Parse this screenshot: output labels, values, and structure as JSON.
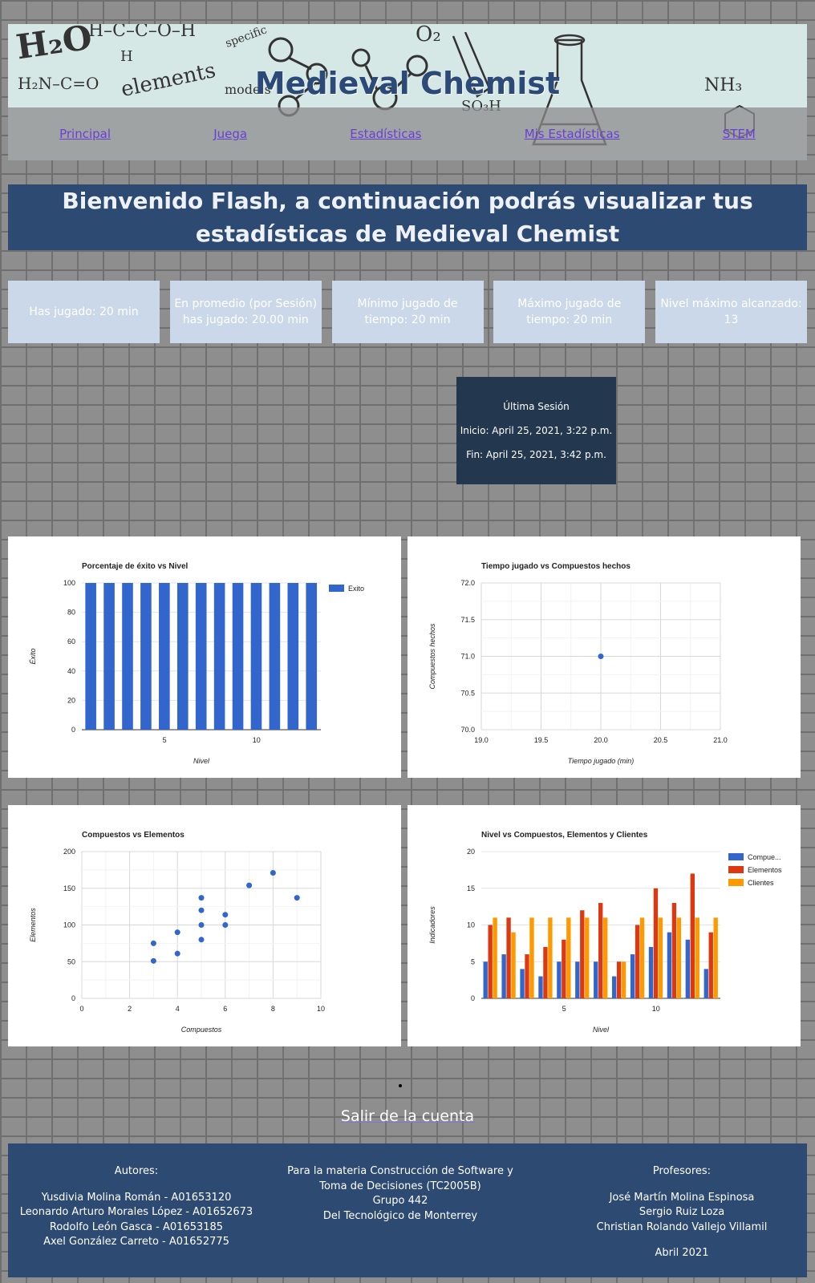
{
  "header": {
    "title": "Medieval Chemist",
    "nav": [
      "Principal",
      "Juega",
      "Estadísticas",
      "Mis Estadísticas",
      "STEM"
    ]
  },
  "welcome": "Bienvenido Flash, a continuación podrás visualizar tus estadísticas de Medieval Chemist",
  "stats": [
    {
      "text": "Has jugado: 20 min"
    },
    {
      "text": "En promedio (por Sesión) has jugado: 20.00 min"
    },
    {
      "text": "Mínimo jugado de tiempo: 20 min"
    },
    {
      "text": "Máximo jugado de tiempo: 20 min"
    },
    {
      "text": "Nivel máximo alcanzado: 13"
    }
  ],
  "session": {
    "title": "Última Sesión",
    "start": "Inicio: April 25, 2021, 3:22 p.m.",
    "end": "Fin: April 25, 2021, 3:42 p.m."
  },
  "chart_data": [
    {
      "type": "bar",
      "title": "Porcentaje de éxito vs Nivel",
      "xlabel": "Nivel",
      "ylabel": "Éxito",
      "x": [
        1,
        2,
        3,
        4,
        5,
        6,
        7,
        8,
        9,
        10,
        11,
        12,
        13
      ],
      "series": [
        {
          "name": "Exito",
          "values": [
            100,
            100,
            100,
            100,
            100,
            100,
            100,
            100,
            100,
            100,
            100,
            100,
            100
          ]
        }
      ],
      "ylim": [
        0,
        100
      ],
      "yticks": [
        0,
        20,
        40,
        60,
        80,
        100
      ],
      "xticks": [
        5,
        10
      ],
      "color": "#3366cc",
      "legend": "right"
    },
    {
      "type": "scatter",
      "title": "Tiempo jugado vs Compuestos hechos",
      "xlabel": "Tiempo jugado (min)",
      "ylabel": "Compuestos hechos",
      "points": [
        [
          20,
          71
        ]
      ],
      "xlim": [
        19,
        21
      ],
      "ylim": [
        70,
        72
      ],
      "xticks": [
        "19.0",
        "19.5",
        "20.0",
        "20.5",
        "21.0"
      ],
      "yticks": [
        "70.0",
        "70.5",
        "71.0",
        "71.5",
        "72.0"
      ],
      "grid": true
    },
    {
      "type": "scatter",
      "title": "Compuestos vs Elementos",
      "xlabel": "Compuestos",
      "ylabel": "Elementos",
      "points": [
        [
          3,
          75
        ],
        [
          3,
          51
        ],
        [
          4,
          90
        ],
        [
          4,
          61
        ],
        [
          5,
          137
        ],
        [
          5,
          120
        ],
        [
          5,
          100
        ],
        [
          5,
          80
        ],
        [
          6,
          114
        ],
        [
          6,
          100
        ],
        [
          7,
          154
        ],
        [
          8,
          171
        ],
        [
          9,
          137
        ]
      ],
      "xlim": [
        0,
        10
      ],
      "ylim": [
        0,
        200
      ],
      "xticks": [
        "0",
        "2",
        "4",
        "6",
        "8",
        "10"
      ],
      "yticks": [
        "0",
        "50",
        "100",
        "150",
        "200"
      ],
      "grid": true
    },
    {
      "type": "bar",
      "title": "Nivel vs Compuestos, Elementos y Clientes",
      "xlabel": "Nivel",
      "ylabel": "Indicadores",
      "x": [
        1,
        2,
        3,
        4,
        5,
        6,
        7,
        8,
        9,
        10,
        11,
        12,
        13
      ],
      "series": [
        {
          "name": "Compue...",
          "color": "#3366cc",
          "values": [
            5,
            6,
            4,
            3,
            5,
            5,
            5,
            3,
            6,
            7,
            9,
            8,
            4
          ]
        },
        {
          "name": "Elementos",
          "color": "#dc3912",
          "values": [
            10,
            11,
            6,
            7,
            8,
            12,
            13,
            5,
            10,
            15,
            13,
            17,
            9
          ]
        },
        {
          "name": "Clientes",
          "color": "#ff9900",
          "values": [
            11,
            9,
            11,
            11,
            11,
            11,
            11,
            5,
            11,
            11,
            11,
            11,
            11
          ]
        }
      ],
      "ylim": [
        0,
        20
      ],
      "yticks": [
        0,
        5,
        10,
        15,
        20
      ],
      "xticks": [
        5,
        10
      ],
      "legend": "right"
    }
  ],
  "logout": "Salir de la cuenta",
  "footer": {
    "authors_title": "Autores:",
    "authors": [
      "Yusdivia Molina Román - A01653120",
      "Leonardo Arturo Morales López - A01652673",
      "Rodolfo León Gasca - A01653185",
      "Axel González Carreto - A01652775"
    ],
    "course": "Para la materia Construcción de Software y Toma de Decisiones (TC2005B)",
    "group": "Grupo 442",
    "school": "Del Tecnológico de Monterrey",
    "profs_title": "Profesores:",
    "profs": [
      "José Martín Molina Espinosa",
      "Sergio Ruiz Loza",
      "Christian Rolando Vallejo Villamil"
    ],
    "date": "Abril 2021"
  }
}
